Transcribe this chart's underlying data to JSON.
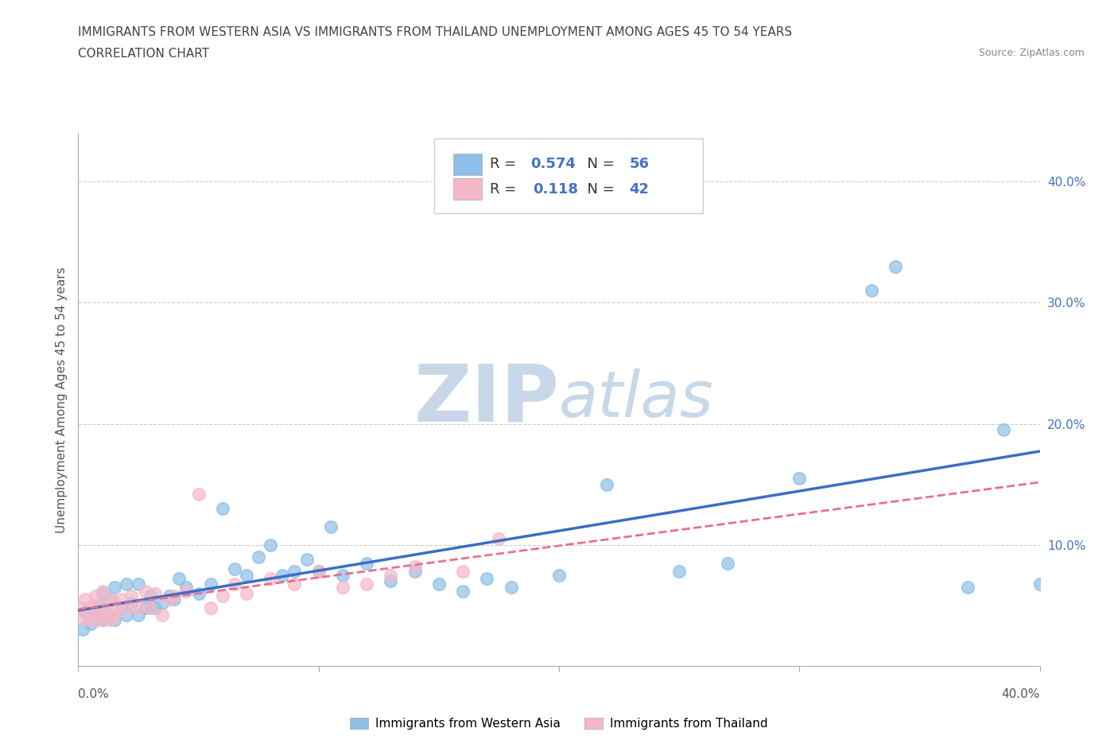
{
  "title_line1": "IMMIGRANTS FROM WESTERN ASIA VS IMMIGRANTS FROM THAILAND UNEMPLOYMENT AMONG AGES 45 TO 54 YEARS",
  "title_line2": "CORRELATION CHART",
  "source_text": "Source: ZipAtlas.com",
  "ylabel": "Unemployment Among Ages 45 to 54 years",
  "xlim": [
    0.0,
    0.4
  ],
  "ylim": [
    0.0,
    0.44
  ],
  "ytick_vals": [
    0.0,
    0.1,
    0.2,
    0.3,
    0.4
  ],
  "ytick_labels": [
    "",
    "10.0%",
    "20.0%",
    "30.0%",
    "40.0%"
  ],
  "xtick_vals": [
    0.0,
    0.1,
    0.2,
    0.3,
    0.4
  ],
  "color_western_asia": "#8DBFE8",
  "color_thailand": "#F4B8C8",
  "color_line_western_asia": "#3A6FC4",
  "color_line_thailand": "#E87090",
  "watermark_zip": "ZIP",
  "watermark_atlas": "atlas",
  "watermark_color": "#c8d8e8",
  "western_asia_x": [
    0.002,
    0.003,
    0.005,
    0.007,
    0.008,
    0.01,
    0.01,
    0.012,
    0.013,
    0.015,
    0.015,
    0.018,
    0.02,
    0.02,
    0.022,
    0.025,
    0.025,
    0.028,
    0.03,
    0.03,
    0.032,
    0.035,
    0.038,
    0.04,
    0.042,
    0.045,
    0.05,
    0.055,
    0.06,
    0.065,
    0.07,
    0.075,
    0.08,
    0.085,
    0.09,
    0.095,
    0.1,
    0.105,
    0.11,
    0.12,
    0.13,
    0.14,
    0.15,
    0.16,
    0.17,
    0.18,
    0.2,
    0.22,
    0.25,
    0.27,
    0.3,
    0.33,
    0.34,
    0.37,
    0.385,
    0.4
  ],
  "western_asia_y": [
    0.03,
    0.045,
    0.035,
    0.04,
    0.05,
    0.038,
    0.06,
    0.042,
    0.055,
    0.038,
    0.065,
    0.048,
    0.042,
    0.068,
    0.052,
    0.042,
    0.068,
    0.048,
    0.05,
    0.058,
    0.048,
    0.052,
    0.058,
    0.055,
    0.072,
    0.065,
    0.06,
    0.068,
    0.13,
    0.08,
    0.075,
    0.09,
    0.1,
    0.075,
    0.078,
    0.088,
    0.078,
    0.115,
    0.075,
    0.085,
    0.07,
    0.078,
    0.068,
    0.062,
    0.072,
    0.065,
    0.075,
    0.15,
    0.078,
    0.085,
    0.155,
    0.31,
    0.33,
    0.065,
    0.195,
    0.068
  ],
  "thailand_x": [
    0.001,
    0.002,
    0.003,
    0.004,
    0.005,
    0.006,
    0.007,
    0.008,
    0.009,
    0.01,
    0.01,
    0.011,
    0.012,
    0.013,
    0.014,
    0.015,
    0.016,
    0.018,
    0.02,
    0.022,
    0.025,
    0.028,
    0.03,
    0.032,
    0.035,
    0.038,
    0.04,
    0.045,
    0.05,
    0.055,
    0.06,
    0.065,
    0.07,
    0.08,
    0.09,
    0.1,
    0.11,
    0.12,
    0.13,
    0.14,
    0.16,
    0.175
  ],
  "thailand_y": [
    0.04,
    0.048,
    0.055,
    0.038,
    0.042,
    0.05,
    0.058,
    0.038,
    0.048,
    0.04,
    0.062,
    0.045,
    0.052,
    0.038,
    0.055,
    0.042,
    0.048,
    0.055,
    0.048,
    0.058,
    0.048,
    0.062,
    0.048,
    0.06,
    0.042,
    0.055,
    0.058,
    0.062,
    0.142,
    0.048,
    0.058,
    0.068,
    0.06,
    0.072,
    0.068,
    0.078,
    0.065,
    0.068,
    0.075,
    0.082,
    0.078,
    0.105
  ],
  "bottom_label_wa": "Immigrants from Western Asia",
  "bottom_label_th": "Immigrants from Thailand"
}
